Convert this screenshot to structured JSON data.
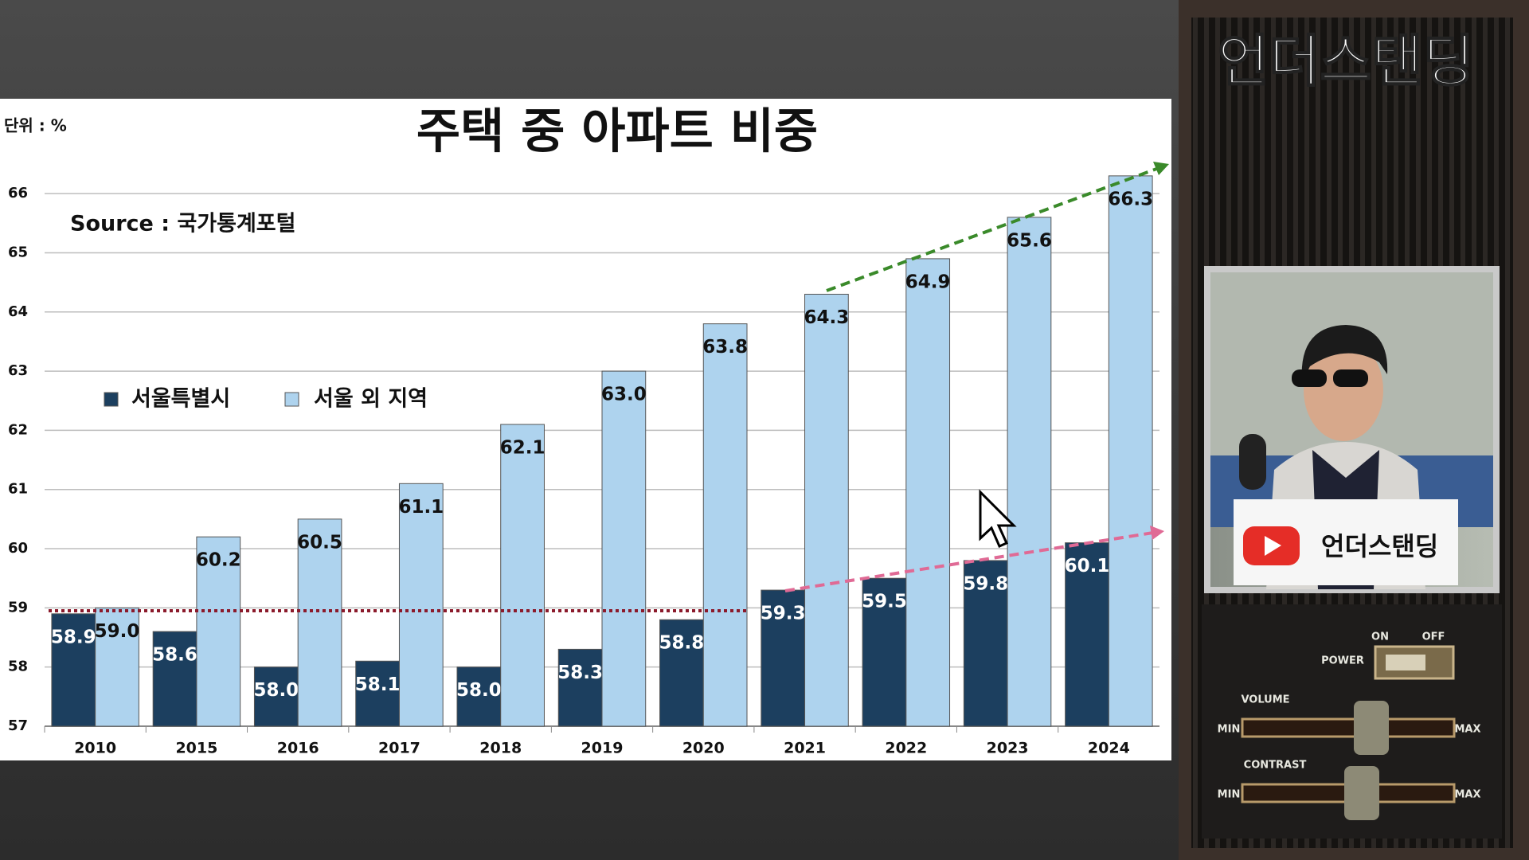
{
  "chart_data": {
    "type": "bar",
    "title": "주택 중 아파트 비중",
    "unit_label": "단위 : %",
    "source": "Source :  국가통계포털",
    "categories": [
      "2010",
      "2015",
      "2016",
      "2017",
      "2018",
      "2019",
      "2020",
      "2021",
      "2022",
      "2023",
      "2024"
    ],
    "series": [
      {
        "name": "서울특별시",
        "color": "#1c3f5f",
        "values": [
          58.9,
          58.6,
          58.0,
          58.1,
          58.0,
          58.3,
          58.8,
          59.3,
          59.5,
          59.8,
          60.1
        ],
        "value_labels": [
          "58.9",
          "58.6",
          "58.0",
          "58.1",
          "58.0",
          "58.3",
          "58.8",
          "59.3",
          "59.5",
          "59.8",
          "60.1"
        ]
      },
      {
        "name": "서울 외 지역",
        "color": "#aed3ee",
        "values": [
          59.0,
          60.2,
          60.5,
          61.1,
          62.1,
          63.0,
          63.8,
          64.3,
          64.9,
          65.6,
          66.3
        ],
        "value_labels": [
          "59.0",
          "60.2",
          "60.5",
          "61.1",
          "62.1",
          "63.0",
          "63.8",
          "64.3",
          "64.9",
          "65.6",
          "66.3"
        ]
      }
    ],
    "ylim": [
      57,
      66.5
    ],
    "yticks": [
      57,
      58,
      59,
      60,
      61,
      62,
      63,
      64,
      65,
      66
    ],
    "grid": true
  },
  "overlay": {
    "channel_title": "언더스탠딩",
    "video_banner": "언더스탠딩",
    "controls": {
      "on": "ON",
      "off": "OFF",
      "power": "POWER",
      "volume": "VOLUME",
      "contrast": "CONTRAST",
      "volume_min": "MIN",
      "volume_max": "MAX",
      "contrast_min": "MIN",
      "contrast_max": "MAX"
    }
  }
}
